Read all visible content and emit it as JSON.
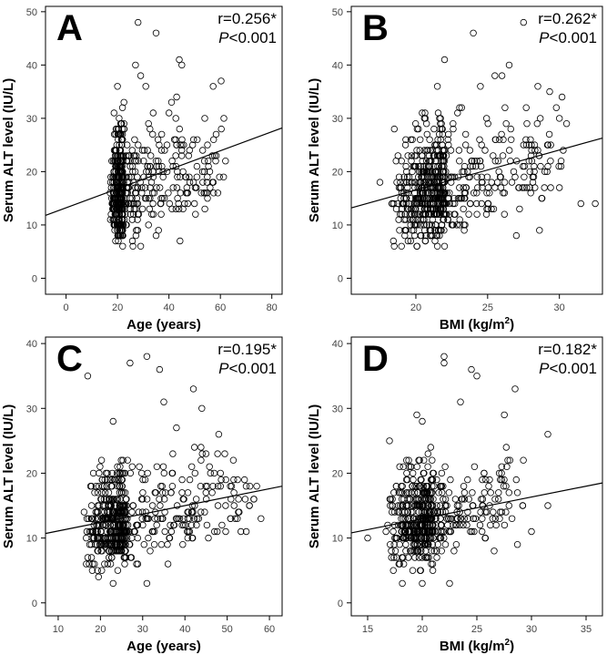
{
  "chart_data": [
    {
      "id": "A",
      "type": "scatter",
      "panel_label": "A",
      "stat_r": "r=0.256*",
      "stat_p_italic": "P",
      "stat_p_rest": "<0.001",
      "xlabel": "Age (years)",
      "ylabel": "Serum ALT level (IU/L)",
      "xlim": [
        -8,
        84
      ],
      "ylim": [
        -3,
        51
      ],
      "xticks": [
        0,
        20,
        40,
        60,
        80
      ],
      "yticks": [
        0,
        10,
        20,
        30,
        40,
        50
      ],
      "fit_line": {
        "x": [
          -8,
          84
        ],
        "y": [
          11.8,
          28.2
        ]
      },
      "point_cloud": {
        "n": 620,
        "x_min": 17,
        "x_mode": 22,
        "x_max": 62,
        "y_mean": 17,
        "y_sd": 5,
        "y_min": 6,
        "slope": 0.17,
        "x_ref": 28
      },
      "outliers": [
        [
          28,
          48
        ],
        [
          35,
          46
        ],
        [
          44,
          41
        ],
        [
          27,
          40
        ],
        [
          45,
          40
        ],
        [
          29,
          38
        ],
        [
          20,
          36
        ],
        [
          43,
          34
        ],
        [
          31,
          36
        ],
        [
          41,
          33
        ],
        [
          62,
          22
        ],
        [
          56,
          17
        ],
        [
          55,
          15
        ],
        [
          51,
          26
        ],
        [
          48,
          24
        ],
        [
          26,
          6
        ],
        [
          29,
          6
        ],
        [
          22,
          6
        ],
        [
          35,
          8
        ]
      ]
    },
    {
      "id": "B",
      "type": "scatter",
      "panel_label": "B",
      "stat_r": "r=0.262*",
      "stat_p_italic": "P",
      "stat_p_rest": "<0.001",
      "xlabel_main": "BMI (kg/m",
      "xlabel_sup": "2",
      "xlabel_end": ")",
      "ylabel": "Serum ALT level (IU/L)",
      "xlim": [
        15.5,
        33
      ],
      "ylim": [
        -3,
        51
      ],
      "xticks": [
        20,
        25,
        30
      ],
      "yticks": [
        0,
        10,
        20,
        30,
        40,
        50
      ],
      "fit_line": {
        "x": [
          15.5,
          33
        ],
        "y": [
          13.2,
          26.3
        ]
      },
      "point_cloud": {
        "n": 680,
        "x_min": 18,
        "x_mode": 22,
        "x_max": 31,
        "y_mean": 17,
        "y_sd": 5,
        "y_min": 6,
        "slope": 0.75,
        "x_ref": 22.5
      },
      "outliers": [
        [
          27.5,
          48
        ],
        [
          24,
          46
        ],
        [
          26.5,
          40
        ],
        [
          22,
          41
        ],
        [
          21.5,
          36
        ],
        [
          24.5,
          36
        ],
        [
          26,
          38
        ],
        [
          28.5,
          36
        ],
        [
          30,
          30
        ],
        [
          30.5,
          29
        ],
        [
          32.5,
          14
        ],
        [
          31.5,
          14
        ],
        [
          30,
          17
        ],
        [
          18.5,
          28
        ],
        [
          19,
          22
        ],
        [
          17.5,
          18
        ],
        [
          27,
          8
        ],
        [
          21.5,
          6
        ],
        [
          22,
          6
        ],
        [
          19,
          6
        ]
      ]
    },
    {
      "id": "C",
      "type": "scatter",
      "panel_label": "C",
      "stat_r": "r=0.195*",
      "stat_p_italic": "P",
      "stat_p_rest": "<0.001",
      "xlabel": "Age (years)",
      "ylabel": "Serum ALT level (IU/L)",
      "xlim": [
        7,
        63
      ],
      "ylim": [
        -2,
        41
      ],
      "xticks": [
        10,
        20,
        30,
        40,
        50,
        60
      ],
      "yticks": [
        0,
        10,
        20,
        30,
        40
      ],
      "fit_line": {
        "x": [
          7,
          63
        ],
        "y": [
          10.7,
          18.0
        ]
      },
      "point_cloud": {
        "n": 560,
        "x_min": 16,
        "x_mode": 26,
        "x_max": 58,
        "y_mean": 13,
        "y_sd": 3.5,
        "y_min": 3,
        "slope": 0.13,
        "x_ref": 32
      },
      "outliers": [
        [
          17,
          35
        ],
        [
          27,
          37
        ],
        [
          31,
          38
        ],
        [
          34,
          36
        ],
        [
          42,
          33
        ],
        [
          35,
          31
        ],
        [
          23,
          28
        ],
        [
          44,
          30
        ],
        [
          38,
          27
        ],
        [
          48,
          26
        ],
        [
          57,
          18
        ],
        [
          58,
          13
        ],
        [
          23,
          3
        ],
        [
          31,
          3
        ],
        [
          36,
          6
        ],
        [
          17,
          7
        ]
      ]
    },
    {
      "id": "D",
      "type": "scatter",
      "panel_label": "D",
      "stat_r": "r=0.182*",
      "stat_p_italic": "P",
      "stat_p_rest": "<0.001",
      "xlabel_main": "BMI (kg/m",
      "xlabel_sup": "2",
      "xlabel_end": ")",
      "ylabel": "Serum ALT level (IU/L)",
      "xlim": [
        13.5,
        36.5
      ],
      "ylim": [
        -2,
        41
      ],
      "xticks": [
        15,
        20,
        25,
        30,
        35
      ],
      "yticks": [
        0,
        10,
        20,
        30,
        40
      ],
      "fit_line": {
        "x": [
          13.5,
          36.5
        ],
        "y": [
          10.8,
          18.5
        ]
      },
      "point_cloud": {
        "n": 520,
        "x_min": 16.5,
        "x_mode": 21,
        "x_max": 30,
        "y_mean": 13,
        "y_sd": 3.5,
        "y_min": 3,
        "slope": 0.35,
        "x_ref": 22
      },
      "outliers": [
        [
          22,
          38
        ],
        [
          22,
          37
        ],
        [
          24.5,
          36
        ],
        [
          25,
          35
        ],
        [
          28.5,
          33
        ],
        [
          23.5,
          31
        ],
        [
          19.5,
          29
        ],
        [
          20,
          28
        ],
        [
          31.5,
          26
        ],
        [
          31.5,
          15
        ],
        [
          30,
          11
        ],
        [
          15,
          10
        ],
        [
          20,
          3
        ],
        [
          22.5,
          3
        ],
        [
          17,
          25
        ]
      ]
    }
  ]
}
